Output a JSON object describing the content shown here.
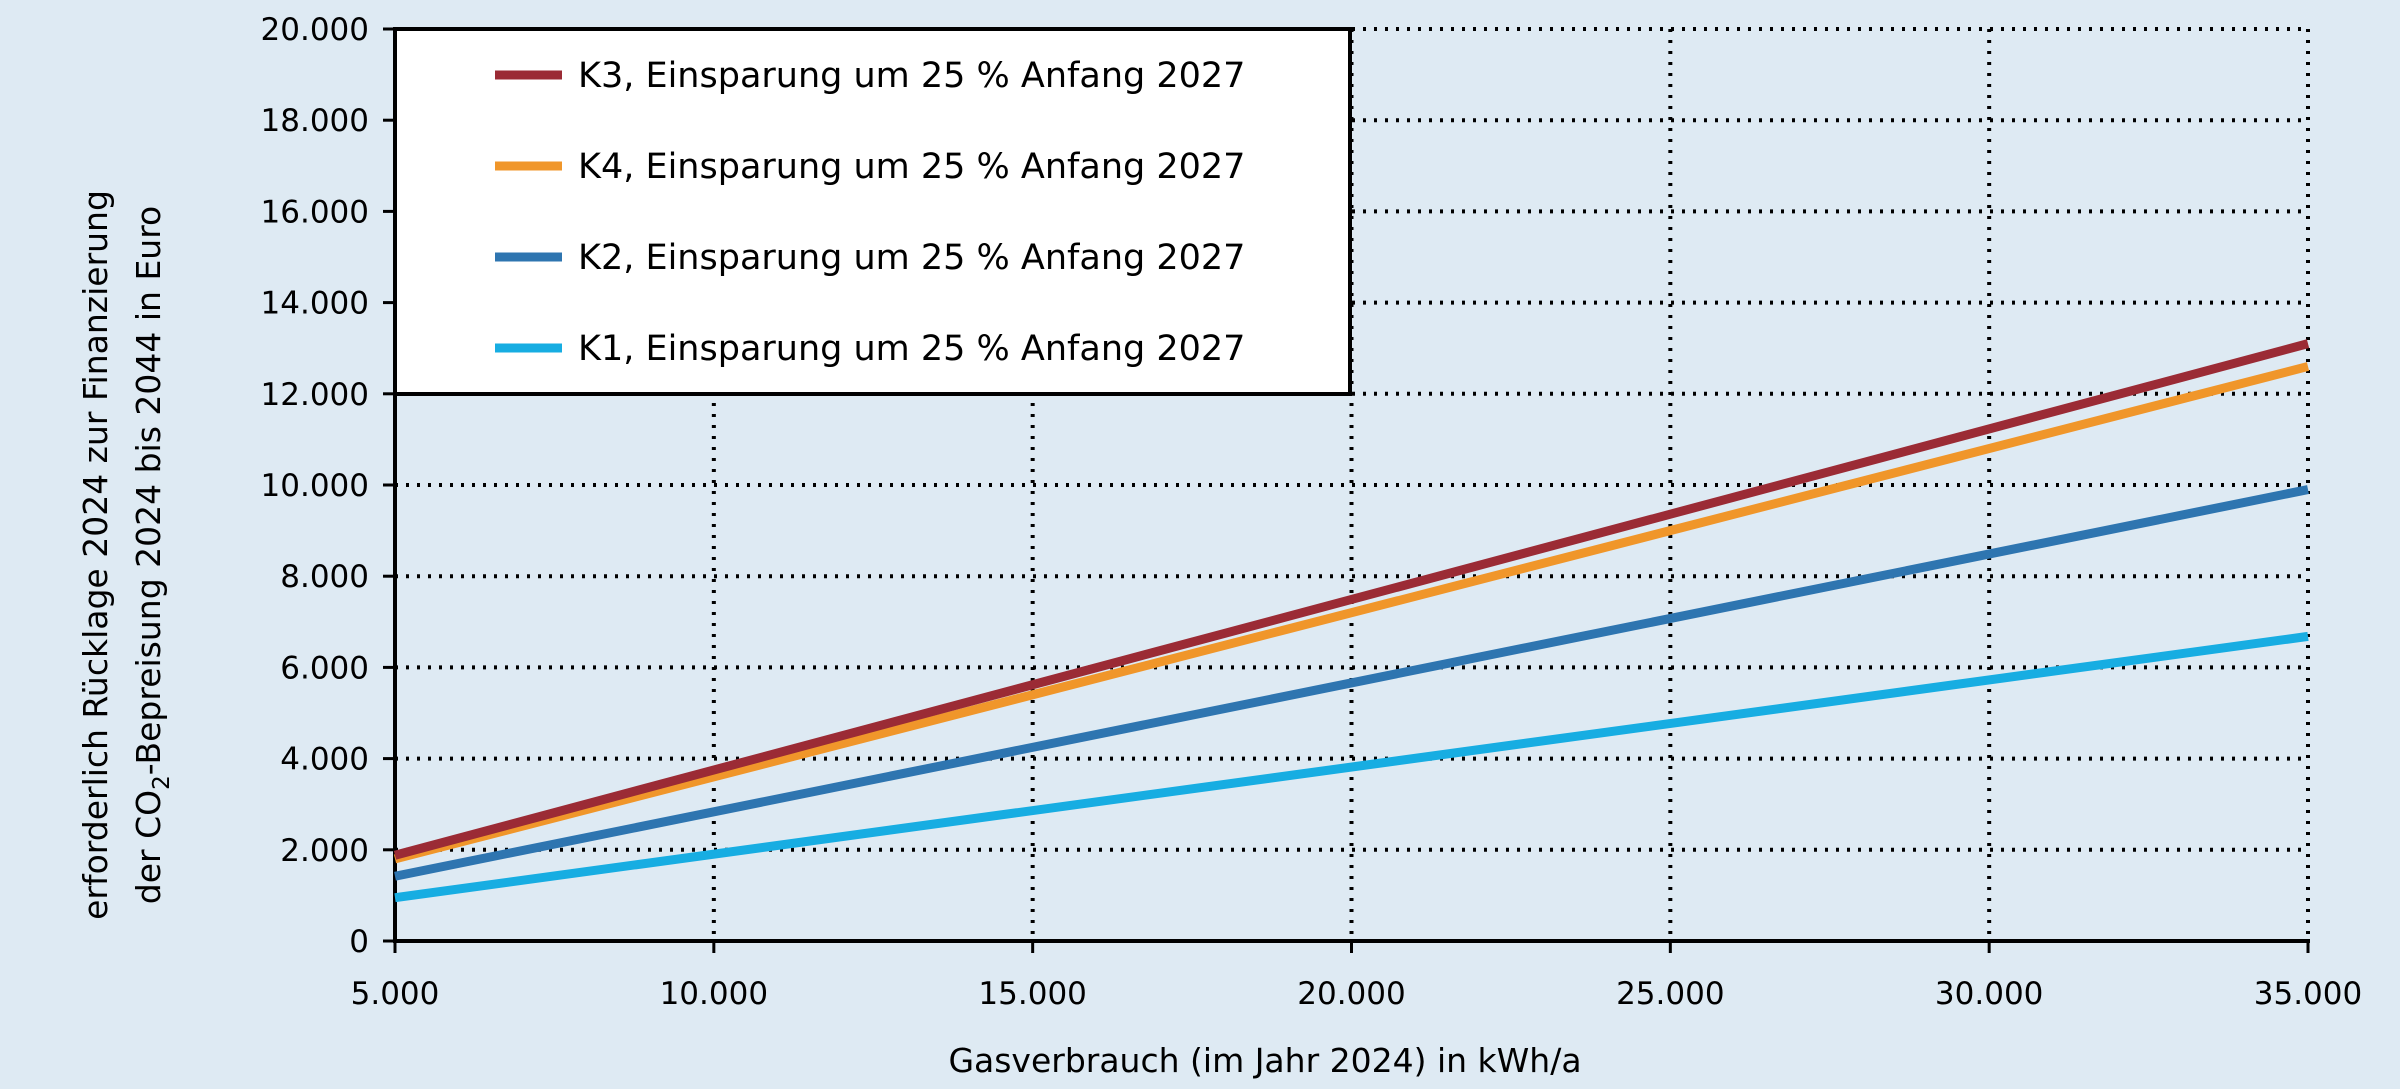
{
  "chart_data": {
    "type": "line",
    "xlabel": "Gasverbrauch (im Jahr 2024) in kWh/a",
    "ylabel_line1": "erforderlich Rücklage 2024 zur Finanzierung",
    "ylabel_line2_prefix": "der CO",
    "ylabel_line2_subscript": "2",
    "ylabel_line2_suffix": "-Bepreisung 2024 bis 2044 in Euro",
    "xlim": [
      5000,
      35000
    ],
    "ylim": [
      0,
      20000
    ],
    "xticks": [
      5000,
      10000,
      15000,
      20000,
      25000,
      30000,
      35000
    ],
    "xtick_labels": [
      "5.000",
      "10.000",
      "15.000",
      "20.000",
      "25.000",
      "30.000",
      "35.000"
    ],
    "yticks": [
      0,
      2000,
      4000,
      6000,
      8000,
      10000,
      12000,
      14000,
      16000,
      18000,
      20000
    ],
    "ytick_labels": [
      "0",
      "2.000",
      "4.000",
      "6.000",
      "8.000",
      "10.000",
      "12.000",
      "14.000",
      "16.000",
      "18.000",
      "20.000"
    ],
    "grid": true,
    "legend_position": "top-left",
    "series": [
      {
        "name": "K3, Einsparung um 25 % Anfang 2027",
        "color": "#9b2b35",
        "x": [
          5000,
          35000
        ],
        "y": [
          1880,
          13100
        ]
      },
      {
        "name": "K4, Einsparung um 25 % Anfang 2027",
        "color": "#f0962a",
        "x": [
          5000,
          35000
        ],
        "y": [
          1800,
          12600
        ]
      },
      {
        "name": "K2, Einsparung um 25 % Anfang 2027",
        "color": "#2e75b0",
        "x": [
          5000,
          35000
        ],
        "y": [
          1420,
          9900
        ]
      },
      {
        "name": "K1, Einsparung um 25 % Anfang 2027",
        "color": "#17ade2",
        "x": [
          5000,
          35000
        ],
        "y": [
          950,
          6680
        ]
      }
    ]
  }
}
